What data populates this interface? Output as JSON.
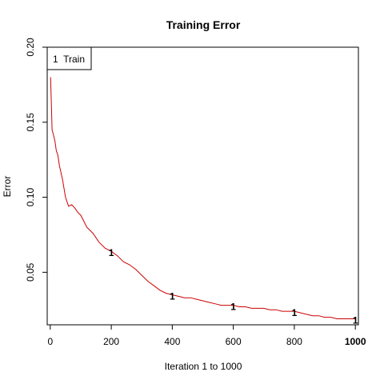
{
  "chart_data": {
    "type": "line",
    "title": "Training Error",
    "xlabel": "Iteration 1 to 1000",
    "ylabel": "Error",
    "xlim": [
      -10,
      1010
    ],
    "ylim": [
      0.015,
      0.2
    ],
    "x_ticks": [
      0,
      200,
      400,
      600,
      800,
      1000
    ],
    "x_tick_labels": [
      "0",
      "200",
      "400",
      "600",
      "800",
      "1000"
    ],
    "x_tick_bold": [
      false,
      false,
      false,
      false,
      false,
      true
    ],
    "y_ticks": [
      0.05,
      0.1,
      0.15,
      0.2
    ],
    "y_tick_labels": [
      "0.05",
      "0.10",
      "0.15",
      "0.20"
    ],
    "grid": false,
    "legend": {
      "position": "top-left",
      "text": "1  Train"
    },
    "series": [
      {
        "name": "Train",
        "color": "#cc0000",
        "marker_label": "1",
        "markers_x": [
          200,
          400,
          600,
          800,
          1000
        ],
        "x": [
          1,
          3,
          6,
          10,
          15,
          20,
          25,
          30,
          40,
          50,
          60,
          70,
          80,
          90,
          100,
          120,
          140,
          160,
          180,
          200,
          220,
          240,
          260,
          280,
          300,
          320,
          340,
          360,
          380,
          400,
          420,
          440,
          460,
          480,
          500,
          520,
          540,
          560,
          580,
          600,
          620,
          640,
          660,
          680,
          700,
          720,
          740,
          760,
          780,
          800,
          820,
          840,
          860,
          880,
          900,
          920,
          940,
          960,
          980,
          1000
        ],
        "values": [
          0.18,
          0.166,
          0.145,
          0.142,
          0.138,
          0.131,
          0.128,
          0.121,
          0.112,
          0.1,
          0.094,
          0.095,
          0.093,
          0.09,
          0.088,
          0.08,
          0.076,
          0.07,
          0.066,
          0.064,
          0.061,
          0.057,
          0.055,
          0.052,
          0.048,
          0.044,
          0.041,
          0.038,
          0.036,
          0.035,
          0.034,
          0.033,
          0.033,
          0.032,
          0.031,
          0.03,
          0.029,
          0.028,
          0.028,
          0.028,
          0.027,
          0.027,
          0.026,
          0.026,
          0.026,
          0.025,
          0.025,
          0.024,
          0.024,
          0.024,
          0.023,
          0.022,
          0.021,
          0.021,
          0.02,
          0.02,
          0.019,
          0.019,
          0.019,
          0.019
        ]
      }
    ]
  }
}
